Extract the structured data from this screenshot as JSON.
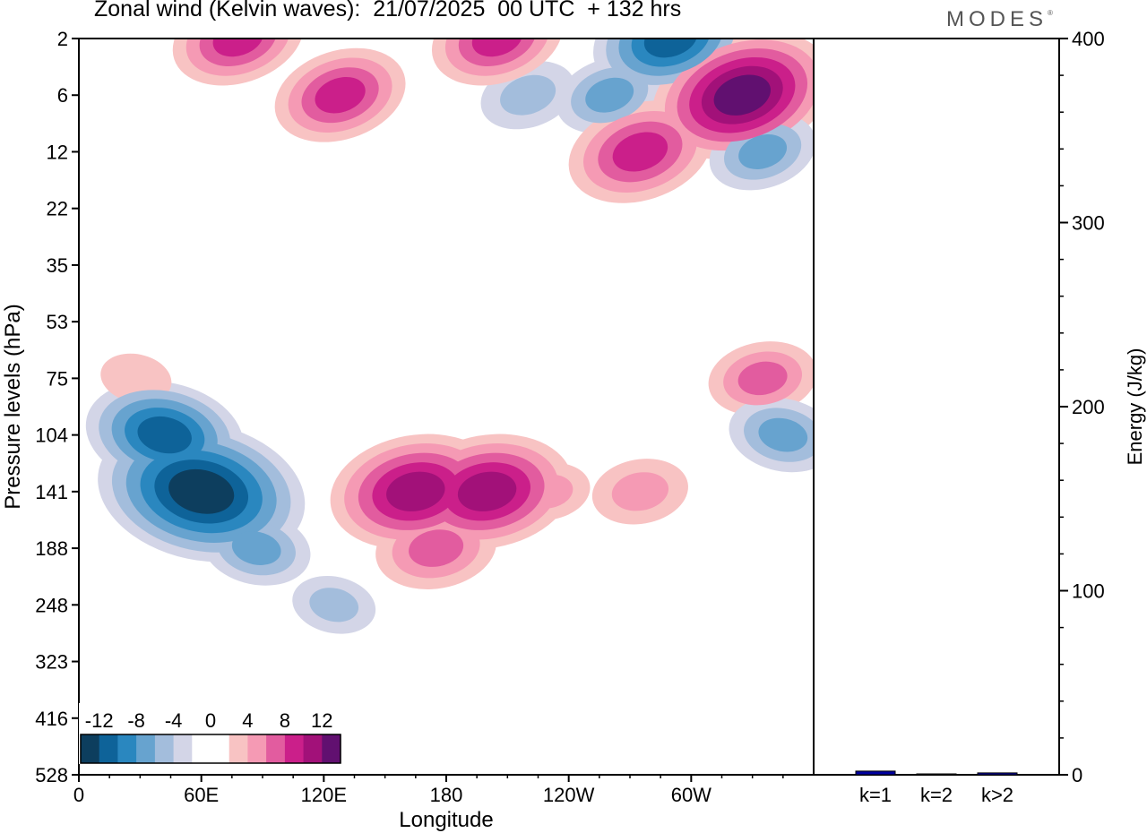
{
  "title": "Zonal wind (Kelvin waves):  21/07/2025  00 UTC  + 132 hrs",
  "logo": "MODES",
  "logo_mark": "®",
  "colors": {
    "neg": [
      "#0d3e5e",
      "#0e6399",
      "#2a87bf",
      "#67a3cf",
      "#a3bddc",
      "#d3d5e7"
    ],
    "pos": [
      "#f8c3c3",
      "#f59ab4",
      "#e25c9f",
      "#cb1f8a",
      "#a21179",
      "#611070"
    ],
    "bar": "#0000a0"
  },
  "chart_data": [
    {
      "type": "heatmap",
      "title": "Zonal wind (Kelvin waves):  21/07/2025  00 UTC  + 132 hrs",
      "xlabel": "Longitude",
      "ylabel": "Pressure levels (hPa)",
      "x_ticks": [
        "0",
        "60E",
        "120E",
        "180",
        "120W",
        "60W"
      ],
      "y_ticks": [
        "2",
        "6",
        "12",
        "22",
        "35",
        "53",
        "75",
        "104",
        "141",
        "188",
        "248",
        "323",
        "416",
        "528"
      ],
      "colorbar_labels": [
        "-12",
        "-8",
        "-4",
        "0",
        "4",
        "8",
        "12"
      ],
      "contour_levels": [
        -12,
        -10,
        -8,
        -6,
        -4,
        -2,
        2,
        4,
        6,
        8,
        10,
        12
      ],
      "features": [
        {
          "lon": 42,
          "level": 104,
          "value": -9
        },
        {
          "lon": 60,
          "level": 141,
          "value": -13
        },
        {
          "lon": 87,
          "level": 188,
          "value": -5
        },
        {
          "lon": 125,
          "level": 248,
          "value": -3
        },
        {
          "lon": 165,
          "level": 141,
          "value": 10
        },
        {
          "lon": 200,
          "level": 141,
          "value": 10
        },
        {
          "lon": 175,
          "level": 188,
          "value": 6
        },
        {
          "lon": 230,
          "level": 141,
          "value": 3
        },
        {
          "lon": 275,
          "level": 141,
          "value": 4
        },
        {
          "lon": 335,
          "level": 75,
          "value": 5
        },
        {
          "lon": 345,
          "level": 104,
          "value": -5
        },
        {
          "lon": 28,
          "level": 75,
          "value": 2
        },
        {
          "lon": 290,
          "level": 2,
          "value": -9
        },
        {
          "lon": 260,
          "level": 6,
          "value": -5
        },
        {
          "lon": 220,
          "level": 6,
          "value": -4
        },
        {
          "lon": 325,
          "level": 6,
          "value": 11
        },
        {
          "lon": 275,
          "level": 12,
          "value": 8
        },
        {
          "lon": 128,
          "level": 6,
          "value": 7
        },
        {
          "lon": 205,
          "level": 2,
          "value": 7
        },
        {
          "lon": 78,
          "level": 2,
          "value": 7
        },
        {
          "lon": 335,
          "level": 12,
          "value": -5
        }
      ]
    },
    {
      "type": "bar",
      "categories": [
        "k=1",
        "k=2",
        "k>2"
      ],
      "values": [
        2,
        0.5,
        1
      ],
      "ylabel": "Energy (J/kg)",
      "ylim": [
        0,
        400
      ],
      "y_ticks": [
        "0",
        "100",
        "200",
        "300",
        "400"
      ]
    }
  ]
}
